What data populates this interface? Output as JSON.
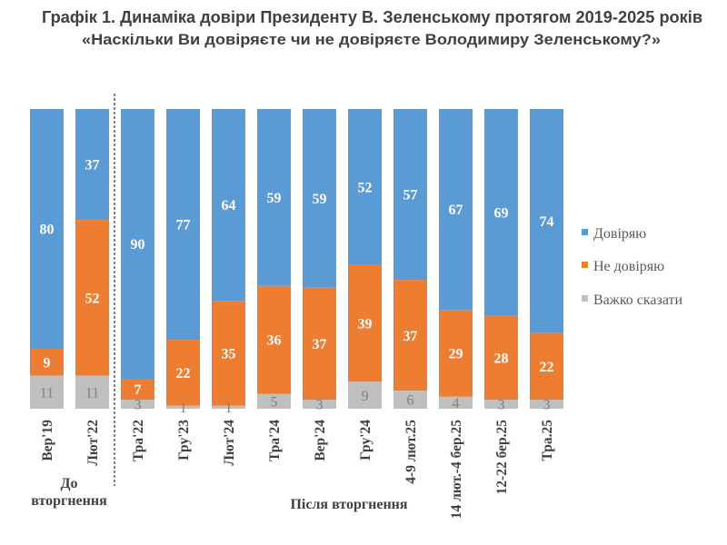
{
  "chart_data": {
    "type": "bar",
    "stacked": true,
    "title": "Графік 1. Динаміка довіри Президенту В. Зеленському протягом 2019-2025 років",
    "subtitle": "«Наскільки Ви довіряєте чи не довіряєте Володимиру Зеленському?»",
    "xlabel": "",
    "ylabel": "",
    "ylim": [
      0,
      100
    ],
    "grid": false,
    "legend_position": "right",
    "categories": [
      "Вер'19",
      "Лют'22",
      "Тра'22",
      "Гру'23",
      "Лют'24",
      "Тра'24",
      "Вер'24",
      "Гру'24",
      "4-9 лют.25",
      "14 лют.-4 бер.25",
      "12-22 бер.25",
      "Тра.25"
    ],
    "series": [
      {
        "key": "trust",
        "name": "Довіряю",
        "color": "#5B9BD5",
        "values": [
          80,
          37,
          90,
          77,
          64,
          59,
          59,
          52,
          57,
          67,
          69,
          74
        ]
      },
      {
        "key": "distrust",
        "name": "Не довіряю",
        "color": "#ED7D31",
        "values": [
          9,
          52,
          7,
          22,
          35,
          36,
          37,
          39,
          37,
          29,
          28,
          22
        ]
      },
      {
        "key": "hard-to-say",
        "name": "Важко сказати",
        "color": "#BFBFBF",
        "values": [
          11,
          11,
          3,
          1,
          1,
          5,
          3,
          9,
          6,
          4,
          3,
          3
        ]
      }
    ],
    "groups": [
      {
        "label_lines": [
          "До",
          "вторгнення"
        ],
        "category_count": 2
      },
      {
        "label_lines": [
          "Після вторгнення"
        ],
        "category_count": 10
      }
    ],
    "divider_after_category": "Лют'22"
  }
}
